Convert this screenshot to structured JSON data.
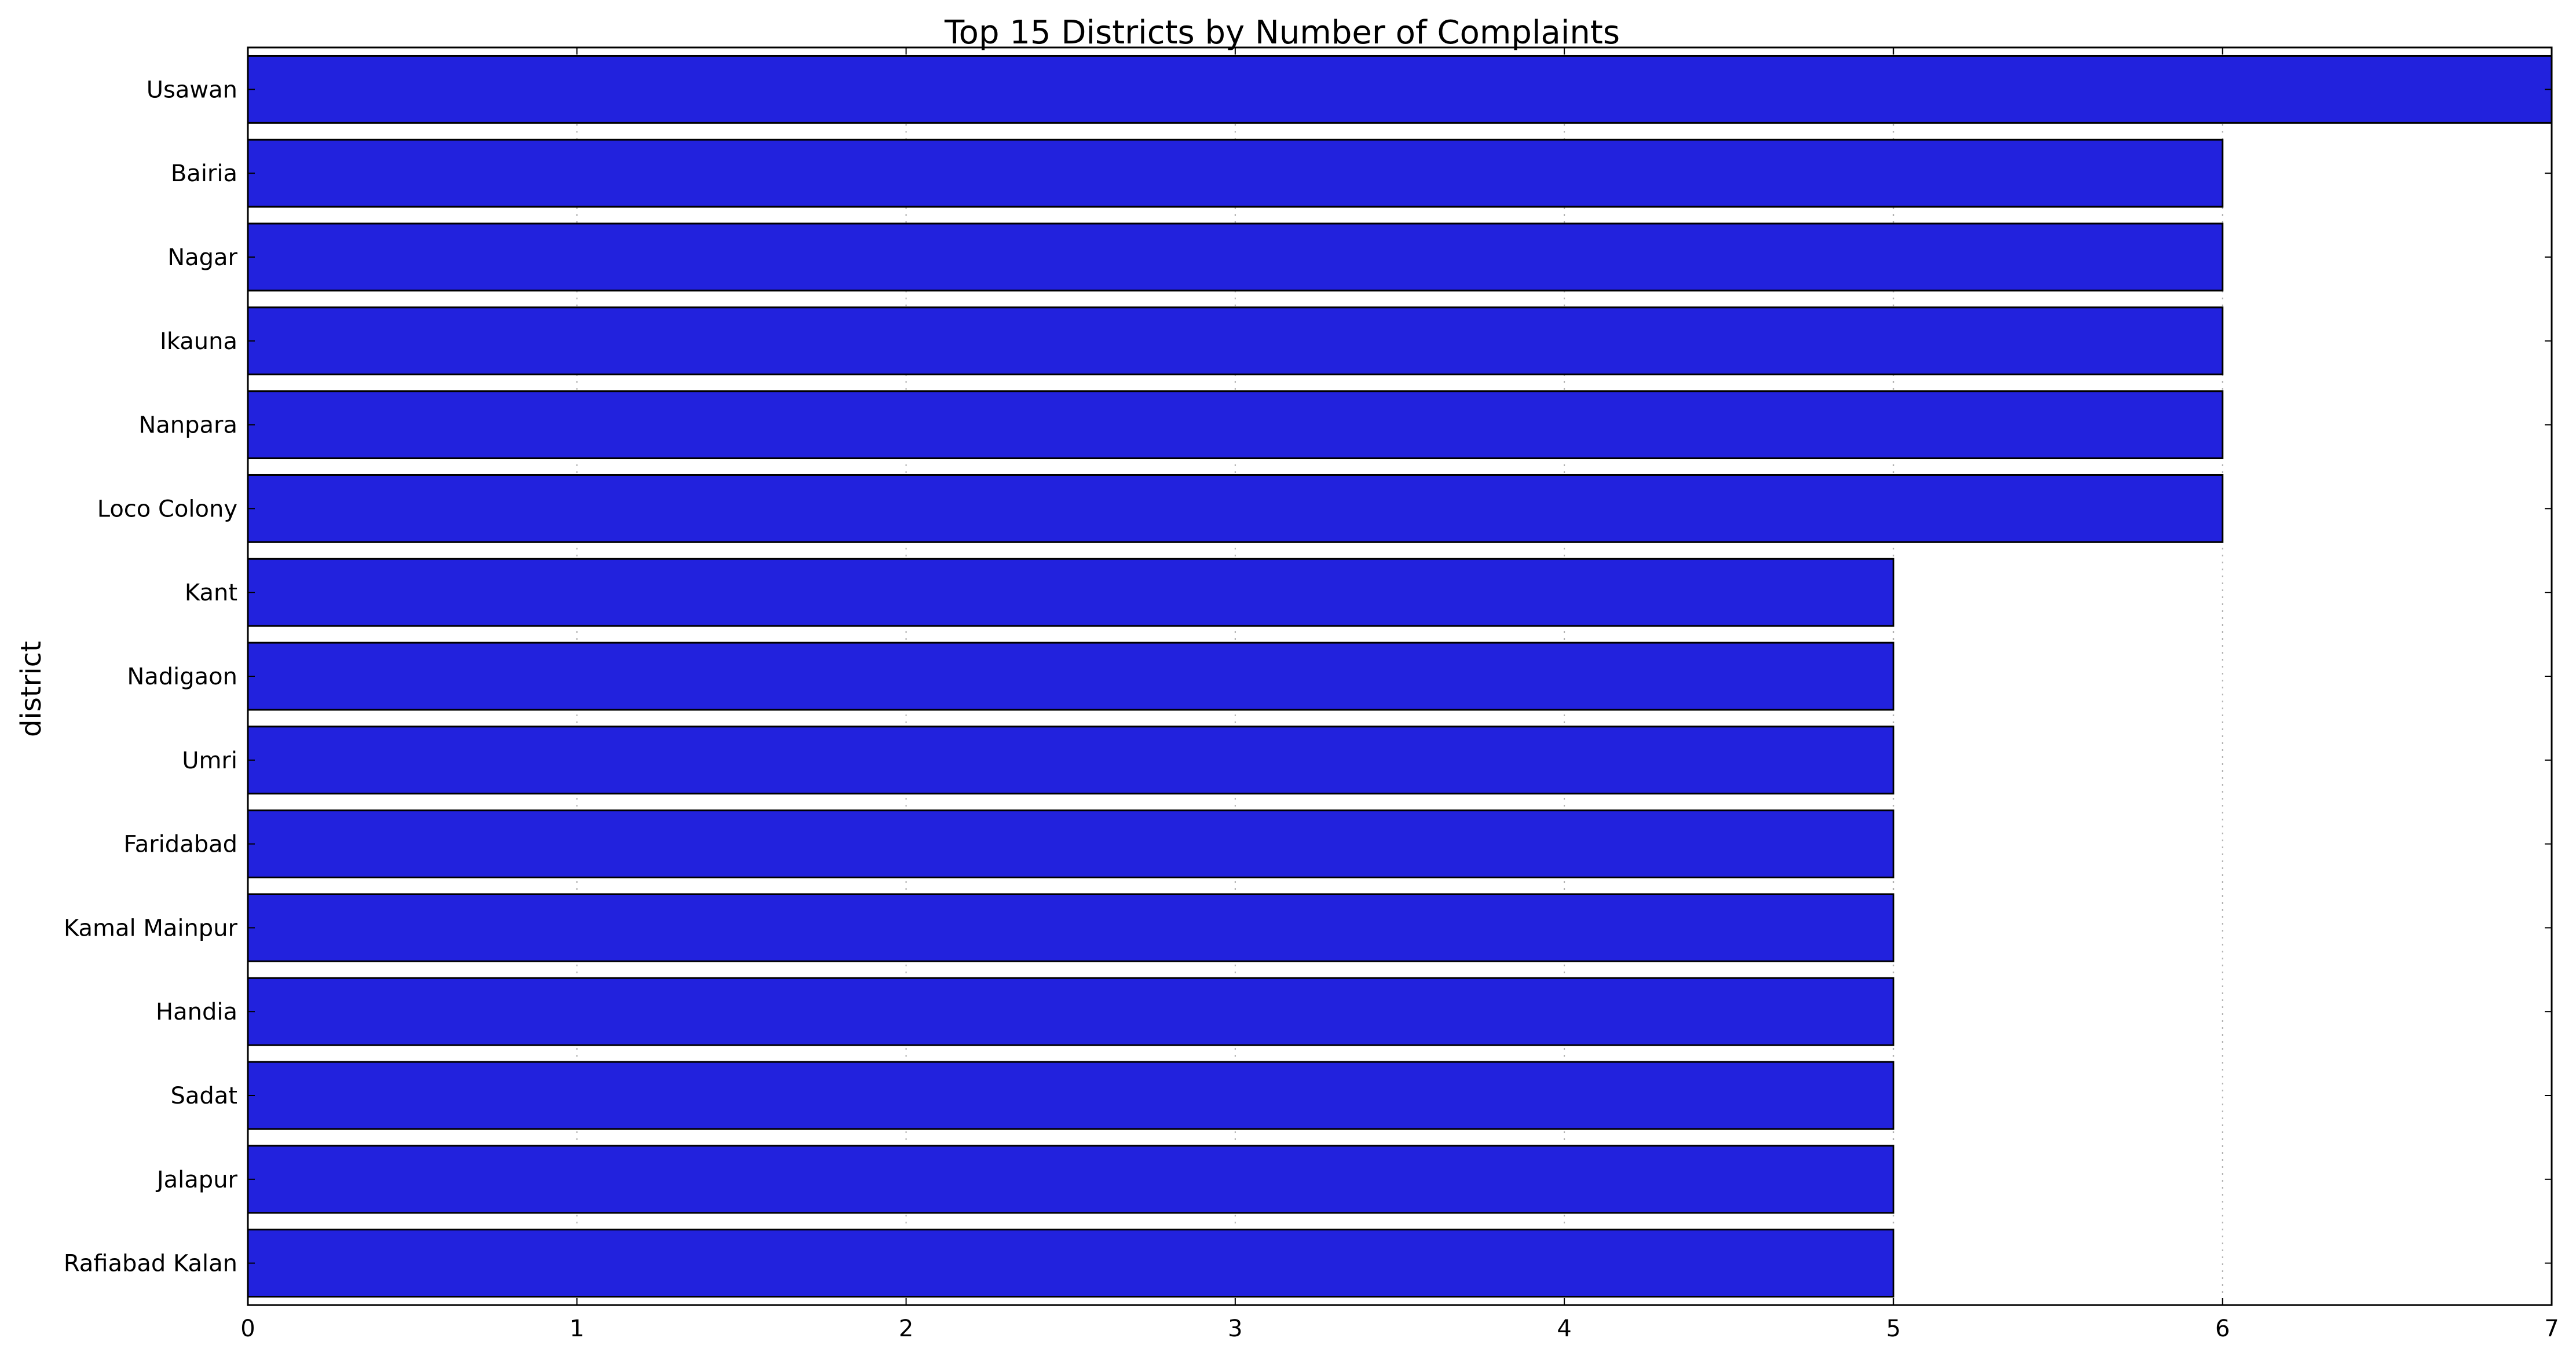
{
  "chart_data": {
    "type": "bar",
    "orientation": "horizontal",
    "title": "Top 15 Districts by Number of Complaints",
    "xlabel": "",
    "ylabel": "district",
    "categories": [
      "Usawan",
      "Bairia",
      "Nagar",
      "Ikauna",
      "Nanpara",
      "Loco Colony",
      "Kant",
      "Nadigaon",
      "Umri",
      "Faridabad",
      "Kamal Mainpur",
      "Handia",
      "Sadat",
      "Jalapur",
      "Rafiabad Kalan"
    ],
    "values": [
      7,
      6,
      6,
      6,
      6,
      6,
      5,
      5,
      5,
      5,
      5,
      5,
      5,
      5,
      5
    ],
    "xlim": [
      0,
      7
    ],
    "xticks": [
      "0",
      "1",
      "2",
      "3",
      "4",
      "5",
      "6",
      "7"
    ],
    "grid": "vertical dotted",
    "legend": "none",
    "bar_color": "#2222dd",
    "bar_edge_color": "#000000"
  }
}
